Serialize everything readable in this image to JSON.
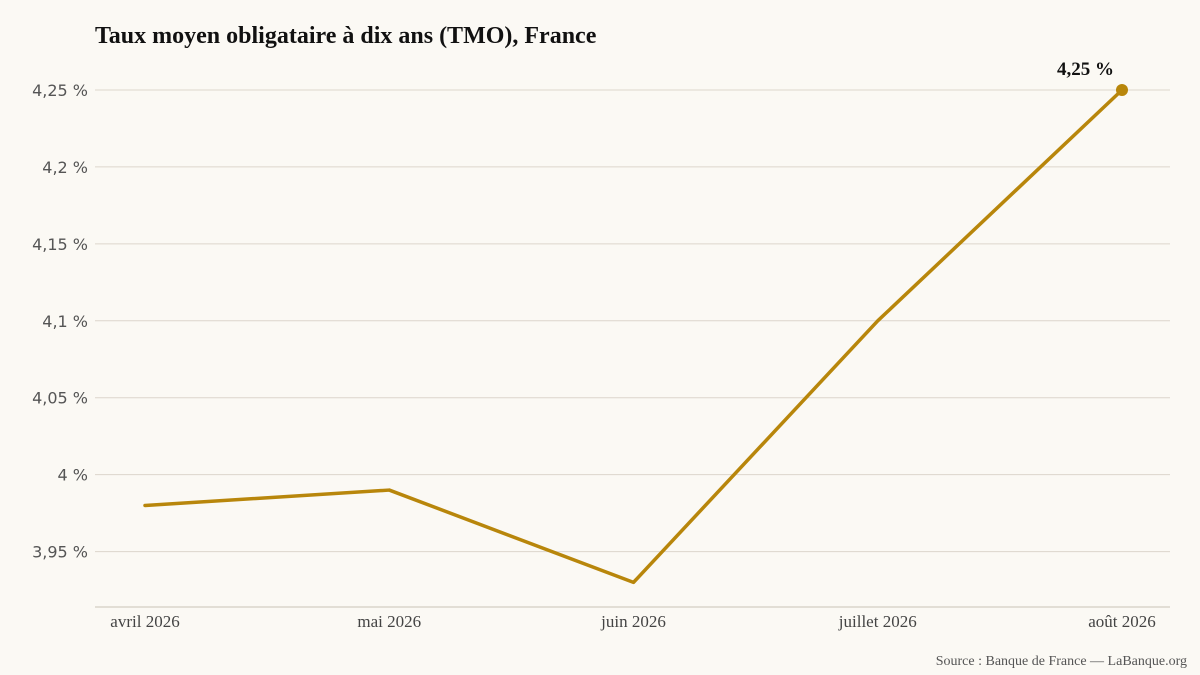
{
  "colors": {
    "line": "#b8860b",
    "background": "#fbf9f4",
    "grid": "#dcd6cc"
  },
  "chart_data": {
    "type": "line",
    "title": "Taux moyen obligataire à dix ans (TMO), France",
    "categories": [
      "avril 2026",
      "mai 2026",
      "juin 2026",
      "juillet 2026",
      "août 2026"
    ],
    "series": [
      {
        "values": [
          3.98,
          3.99,
          3.93,
          4.1,
          4.25
        ]
      }
    ],
    "yticks": [
      3.95,
      4.0,
      4.05,
      4.1,
      4.15,
      4.2,
      4.25
    ],
    "ytick_labels": [
      "3,95 %",
      "4 %",
      "4,05 %",
      "4,1 %",
      "4,15 %",
      "4,2 %",
      "4,25 %"
    ],
    "ylim": [
      3.914,
      4.25
    ],
    "grid": true,
    "end_label": "4,25 %",
    "source": "Source : Banque de France — LaBanque.org"
  }
}
